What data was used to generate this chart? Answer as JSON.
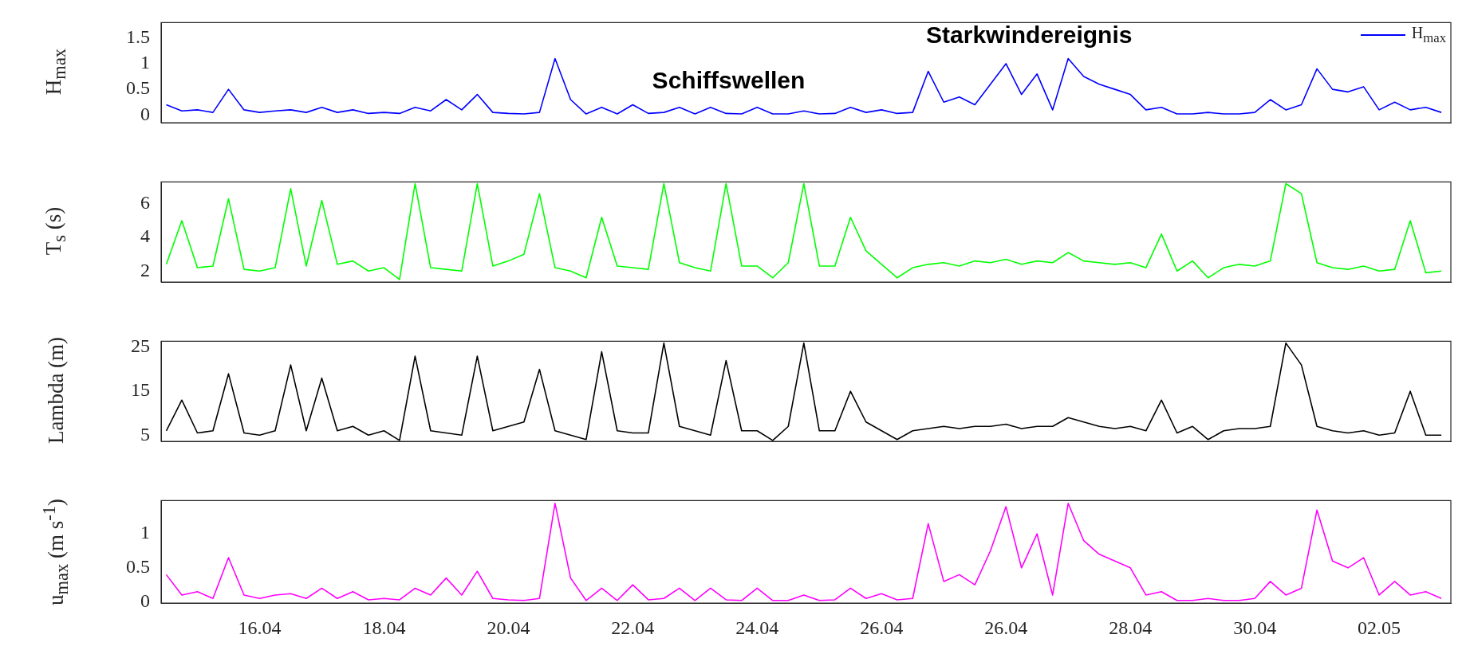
{
  "chart_data": [
    {
      "type": "line",
      "ylabel": "H$_{max}$",
      "legend": "top right",
      "tick_labels": "y",
      "marker": "none",
      "line_style": "solid",
      "annotations": [
        "Starkwindereignis",
        "Schiffswellen"
      ],
      "xlim": [
        "--04-14T10:00",
        "--05-05T03:40"
      ],
      "ylim": [
        -0.15,
        1.8
      ],
      "yticks": [
        0,
        0.5,
        1,
        1.5
      ],
      "x": [
        "--04-14T12:00",
        "--04-14T18:00",
        "--04-15T00:00",
        "--04-15T06:00",
        "--04-15T12:00",
        "--04-15T18:00",
        "--04-16T00:00",
        "--04-16T06:00",
        "--04-16T12:00",
        "--04-16T18:00",
        "--04-17T00:00",
        "--04-17T06:00",
        "--04-17T12:00",
        "--04-17T18:00",
        "--04-18T00:00",
        "--04-18T06:00",
        "--04-18T12:00",
        "--04-18T18:00",
        "--04-19T00:00",
        "--04-19T06:00",
        "--04-19T12:00",
        "--04-19T18:00",
        "--04-20T00:00",
        "--04-20T06:00",
        "--04-20T12:00",
        "--04-20T18:00",
        "--04-21T00:00",
        "--04-21T06:00",
        "--04-21T12:00",
        "--04-21T18:00",
        "--04-22T00:00",
        "--04-22T06:00",
        "--04-22T12:00",
        "--04-22T18:00",
        "--04-23T00:00",
        "--04-23T06:00",
        "--04-23T12:00",
        "--04-23T18:00",
        "--04-24T00:00",
        "--04-24T06:00",
        "--04-24T12:00",
        "--04-24T18:00",
        "--04-25T00:00",
        "--04-25T06:00",
        "--04-25T12:00",
        "--04-25T18:00",
        "--04-26T00:00",
        "--04-26T06:00",
        "--04-26T12:00",
        "--04-26T18:00",
        "--04-27T00:00",
        "--04-27T06:00",
        "--04-27T12:00",
        "--04-27T18:00",
        "--04-28T00:00",
        "--04-28T06:00",
        "--04-28T12:00",
        "--04-28T18:00",
        "--04-29T00:00",
        "--04-29T06:00",
        "--04-29T12:00",
        "--04-29T18:00",
        "--04-30T00:00",
        "--04-30T06:00",
        "--04-30T12:00",
        "--04-30T18:00",
        "--05-01T00:00",
        "--05-01T06:00",
        "--05-01T12:00",
        "--05-01T18:00",
        "--05-02T00:00",
        "--05-02T06:00",
        "--05-02T12:00",
        "--05-02T18:00",
        "--05-03T00:00",
        "--05-03T06:00",
        "--05-03T12:00",
        "--05-03T18:00",
        "--05-04T00:00",
        "--05-04T06:00",
        "--05-04T12:00",
        "--05-04T18:00",
        "--05-05T00:00"
      ],
      "series": [
        {
          "name": "H$_{max}$",
          "color": "#0000ff",
          "values": [
            0.2,
            0.08,
            0.1,
            0.05,
            0.5,
            0.1,
            0.05,
            0.08,
            0.1,
            0.05,
            0.15,
            0.05,
            0.1,
            0.03,
            0.05,
            0.03,
            0.15,
            0.08,
            0.3,
            0.1,
            0.4,
            0.05,
            0.03,
            0.02,
            0.05,
            1.1,
            0.3,
            0.02,
            0.15,
            0.02,
            0.2,
            0.03,
            0.05,
            0.15,
            0.02,
            0.15,
            0.03,
            0.02,
            0.15,
            0.02,
            0.02,
            0.08,
            0.02,
            0.03,
            0.15,
            0.05,
            0.1,
            0.03,
            0.05,
            0.85,
            0.25,
            0.35,
            0.2,
            0.6,
            1.0,
            0.4,
            0.8,
            0.1,
            1.1,
            0.75,
            0.6,
            0.5,
            0.4,
            0.1,
            0.15,
            0.02,
            0.02,
            0.05,
            0.02,
            0.02,
            0.05,
            0.3,
            0.1,
            0.2,
            0.9,
            0.5,
            0.45,
            0.55,
            0.1,
            0.25,
            0.1,
            0.15,
            0.05
          ]
        }
      ]
    },
    {
      "type": "line",
      "ylabel": "T$_{s}$ (s)",
      "tick_labels": "y",
      "marker": "none",
      "line_style": "solid",
      "xlim": [
        "--04-14T10:00",
        "--05-05T03:40"
      ],
      "ylim": [
        1.35,
        7.3
      ],
      "yticks": [
        2,
        4,
        6
      ],
      "x": [
        "--04-14T12:00",
        "--04-14T18:00",
        "--04-15T00:00",
        "--04-15T06:00",
        "--04-15T12:00",
        "--04-15T18:00",
        "--04-16T00:00",
        "--04-16T06:00",
        "--04-16T12:00",
        "--04-16T18:00",
        "--04-17T00:00",
        "--04-17T06:00",
        "--04-17T12:00",
        "--04-17T18:00",
        "--04-18T00:00",
        "--04-18T06:00",
        "--04-18T12:00",
        "--04-18T18:00",
        "--04-19T00:00",
        "--04-19T06:00",
        "--04-19T12:00",
        "--04-19T18:00",
        "--04-20T00:00",
        "--04-20T06:00",
        "--04-20T12:00",
        "--04-20T18:00",
        "--04-21T00:00",
        "--04-21T06:00",
        "--04-21T12:00",
        "--04-21T18:00",
        "--04-22T00:00",
        "--04-22T06:00",
        "--04-22T12:00",
        "--04-22T18:00",
        "--04-23T00:00",
        "--04-23T06:00",
        "--04-23T12:00",
        "--04-23T18:00",
        "--04-24T00:00",
        "--04-24T06:00",
        "--04-24T12:00",
        "--04-24T18:00",
        "--04-25T00:00",
        "--04-25T06:00",
        "--04-25T12:00",
        "--04-25T18:00",
        "--04-26T00:00",
        "--04-26T06:00",
        "--04-26T12:00",
        "--04-26T18:00",
        "--04-27T00:00",
        "--04-27T06:00",
        "--04-27T12:00",
        "--04-27T18:00",
        "--04-28T00:00",
        "--04-28T06:00",
        "--04-28T12:00",
        "--04-28T18:00",
        "--04-29T00:00",
        "--04-29T06:00",
        "--04-29T12:00",
        "--04-29T18:00",
        "--04-30T00:00",
        "--04-30T06:00",
        "--04-30T12:00",
        "--04-30T18:00",
        "--05-01T00:00",
        "--05-01T06:00",
        "--05-01T12:00",
        "--05-01T18:00",
        "--05-02T00:00",
        "--05-02T06:00",
        "--05-02T12:00",
        "--05-02T18:00",
        "--05-03T00:00",
        "--05-03T06:00",
        "--05-03T12:00",
        "--05-03T18:00",
        "--05-04T00:00",
        "--05-04T06:00",
        "--05-04T12:00",
        "--05-04T18:00",
        "--05-05T00:00"
      ],
      "series": [
        {
          "color": "#00ff00",
          "values": [
            2.4,
            5.0,
            2.2,
            2.3,
            6.3,
            2.1,
            2.0,
            2.2,
            6.9,
            2.3,
            6.2,
            2.4,
            2.6,
            2.0,
            2.2,
            1.5,
            7.2,
            2.2,
            2.1,
            2.0,
            7.2,
            2.3,
            2.6,
            3.0,
            6.6,
            2.2,
            2.0,
            1.6,
            5.2,
            2.3,
            2.2,
            2.1,
            7.2,
            2.5,
            2.2,
            2.0,
            7.2,
            2.3,
            2.3,
            1.6,
            2.5,
            7.2,
            2.3,
            2.3,
            5.2,
            3.2,
            2.4,
            1.6,
            2.2,
            2.4,
            2.5,
            2.3,
            2.6,
            2.5,
            2.7,
            2.4,
            2.6,
            2.5,
            3.1,
            2.6,
            2.5,
            2.4,
            2.5,
            2.2,
            4.2,
            2.0,
            2.6,
            1.6,
            2.2,
            2.4,
            2.3,
            2.6,
            7.2,
            6.6,
            2.5,
            2.2,
            2.1,
            2.3,
            2.0,
            2.1,
            5.0,
            1.9,
            2.0
          ]
        }
      ]
    },
    {
      "type": "line",
      "ylabel": "Lambda (m)",
      "tick_labels": "y",
      "marker": "none",
      "line_style": "solid",
      "xlim": [
        "--04-14T10:00",
        "--05-05T03:40"
      ],
      "ylim": [
        3.6,
        26.4
      ],
      "yticks": [
        5,
        15,
        25
      ],
      "x": [
        "--04-14T12:00",
        "--04-14T18:00",
        "--04-15T00:00",
        "--04-15T06:00",
        "--04-15T12:00",
        "--04-15T18:00",
        "--04-16T00:00",
        "--04-16T06:00",
        "--04-16T12:00",
        "--04-16T18:00",
        "--04-17T00:00",
        "--04-17T06:00",
        "--04-17T12:00",
        "--04-17T18:00",
        "--04-18T00:00",
        "--04-18T06:00",
        "--04-18T12:00",
        "--04-18T18:00",
        "--04-19T00:00",
        "--04-19T06:00",
        "--04-19T12:00",
        "--04-19T18:00",
        "--04-20T00:00",
        "--04-20T06:00",
        "--04-20T12:00",
        "--04-20T18:00",
        "--04-21T00:00",
        "--04-21T06:00",
        "--04-21T12:00",
        "--04-21T18:00",
        "--04-22T00:00",
        "--04-22T06:00",
        "--04-22T12:00",
        "--04-22T18:00",
        "--04-23T00:00",
        "--04-23T06:00",
        "--04-23T12:00",
        "--04-23T18:00",
        "--04-24T00:00",
        "--04-24T06:00",
        "--04-24T12:00",
        "--04-24T18:00",
        "--04-25T00:00",
        "--04-25T06:00",
        "--04-25T12:00",
        "--04-25T18:00",
        "--04-26T00:00",
        "--04-26T06:00",
        "--04-26T12:00",
        "--04-26T18:00",
        "--04-27T00:00",
        "--04-27T06:00",
        "--04-27T12:00",
        "--04-27T18:00",
        "--04-28T00:00",
        "--04-28T06:00",
        "--04-28T12:00",
        "--04-28T18:00",
        "--04-29T00:00",
        "--04-29T06:00",
        "--04-29T12:00",
        "--04-29T18:00",
        "--04-30T00:00",
        "--04-30T06:00",
        "--04-30T12:00",
        "--04-30T18:00",
        "--05-01T00:00",
        "--05-01T06:00",
        "--05-01T12:00",
        "--05-01T18:00",
        "--05-02T00:00",
        "--05-02T06:00",
        "--05-02T12:00",
        "--05-02T18:00",
        "--05-03T00:00",
        "--05-03T06:00",
        "--05-03T12:00",
        "--05-03T18:00",
        "--05-04T00:00",
        "--05-04T06:00",
        "--05-04T12:00",
        "--05-04T18:00",
        "--05-05T00:00"
      ],
      "series": [
        {
          "color": "#000000",
          "values": [
            6,
            13,
            5.5,
            6,
            19,
            5.5,
            5,
            6,
            21,
            6,
            18,
            6,
            7,
            5,
            6,
            3.8,
            23,
            6,
            5.5,
            5,
            23,
            6,
            7,
            8,
            20,
            6,
            5,
            4,
            24,
            6,
            5.5,
            5.5,
            26,
            7,
            6,
            5,
            22,
            6,
            6,
            3.8,
            7,
            26,
            6,
            6,
            15,
            8,
            6,
            4,
            6,
            6.5,
            7,
            6.5,
            7,
            7,
            7.5,
            6.5,
            7,
            7,
            9,
            8,
            7,
            6.5,
            7,
            6,
            13,
            5.5,
            7,
            4,
            6,
            6.5,
            6.5,
            7,
            26,
            21,
            7,
            6,
            5.5,
            6,
            5,
            5.5,
            15,
            5,
            5
          ]
        }
      ]
    },
    {
      "type": "line",
      "ylabel": "u$_{max}$ (m s$^{-1}$)",
      "marker": "none",
      "line_style": "solid",
      "xlim": [
        "--04-14T10:00",
        "--05-05T03:40"
      ],
      "xticks": [
        {
          "value": "--04-16",
          "label": "16.04"
        },
        {
          "value": "--04-18",
          "label": "18.04"
        },
        {
          "value": "--04-20",
          "label": "20.04"
        },
        {
          "value": "--04-22",
          "label": "22.04"
        },
        {
          "value": "--04-24",
          "label": "24.04"
        },
        {
          "value": "--04-26",
          "label": "26.04"
        },
        {
          "value": "--04-28",
          "label": "26.04"
        },
        {
          "value": "--04-30",
          "label": "28.04"
        },
        {
          "value": "--05-02",
          "label": "30.04"
        },
        {
          "value": "--05-04",
          "label": "02.05"
        }
      ],
      "ylim": [
        -0.02,
        1.49
      ],
      "yticks": [
        0,
        0.5,
        1
      ],
      "x": [
        "--04-14T12:00",
        "--04-14T18:00",
        "--04-15T00:00",
        "--04-15T06:00",
        "--04-15T12:00",
        "--04-15T18:00",
        "--04-16T00:00",
        "--04-16T06:00",
        "--04-16T12:00",
        "--04-16T18:00",
        "--04-17T00:00",
        "--04-17T06:00",
        "--04-17T12:00",
        "--04-17T18:00",
        "--04-18T00:00",
        "--04-18T06:00",
        "--04-18T12:00",
        "--04-18T18:00",
        "--04-19T00:00",
        "--04-19T06:00",
        "--04-19T12:00",
        "--04-19T18:00",
        "--04-20T00:00",
        "--04-20T06:00",
        "--04-20T12:00",
        "--04-20T18:00",
        "--04-21T00:00",
        "--04-21T06:00",
        "--04-21T12:00",
        "--04-21T18:00",
        "--04-22T00:00",
        "--04-22T06:00",
        "--04-22T12:00",
        "--04-22T18:00",
        "--04-23T00:00",
        "--04-23T06:00",
        "--04-23T12:00",
        "--04-23T18:00",
        "--04-24T00:00",
        "--04-24T06:00",
        "--04-24T12:00",
        "--04-24T18:00",
        "--04-25T00:00",
        "--04-25T06:00",
        "--04-25T12:00",
        "--04-25T18:00",
        "--04-26T00:00",
        "--04-26T06:00",
        "--04-26T12:00",
        "--04-26T18:00",
        "--04-27T00:00",
        "--04-27T06:00",
        "--04-27T12:00",
        "--04-27T18:00",
        "--04-28T00:00",
        "--04-28T06:00",
        "--04-28T12:00",
        "--04-28T18:00",
        "--04-29T00:00",
        "--04-29T06:00",
        "--04-29T12:00",
        "--04-29T18:00",
        "--04-30T00:00",
        "--04-30T06:00",
        "--04-30T12:00",
        "--04-30T18:00",
        "--05-01T00:00",
        "--05-01T06:00",
        "--05-01T12:00",
        "--05-01T18:00",
        "--05-02T00:00",
        "--05-02T06:00",
        "--05-02T12:00",
        "--05-02T18:00",
        "--05-03T00:00",
        "--05-03T06:00",
        "--05-03T12:00",
        "--05-03T18:00",
        "--05-04T00:00",
        "--05-04T06:00",
        "--05-04T12:00",
        "--05-04T18:00",
        "--05-05T00:00"
      ],
      "series": [
        {
          "color": "#ff00ff",
          "values": [
            0.4,
            0.1,
            0.15,
            0.05,
            0.65,
            0.1,
            0.05,
            0.1,
            0.12,
            0.05,
            0.2,
            0.05,
            0.15,
            0.03,
            0.05,
            0.03,
            0.2,
            0.1,
            0.35,
            0.1,
            0.45,
            0.05,
            0.03,
            0.02,
            0.05,
            1.45,
            0.35,
            0.02,
            0.2,
            0.02,
            0.25,
            0.03,
            0.05,
            0.2,
            0.02,
            0.2,
            0.03,
            0.02,
            0.2,
            0.02,
            0.02,
            0.1,
            0.02,
            0.03,
            0.2,
            0.05,
            0.12,
            0.03,
            0.05,
            1.15,
            0.3,
            0.4,
            0.25,
            0.75,
            1.4,
            0.5,
            1.0,
            0.1,
            1.45,
            0.9,
            0.7,
            0.6,
            0.5,
            0.1,
            0.15,
            0.02,
            0.02,
            0.05,
            0.02,
            0.02,
            0.05,
            0.3,
            0.1,
            0.2,
            1.35,
            0.6,
            0.5,
            0.65,
            0.1,
            0.3,
            0.1,
            0.15,
            0.05
          ]
        }
      ]
    }
  ]
}
